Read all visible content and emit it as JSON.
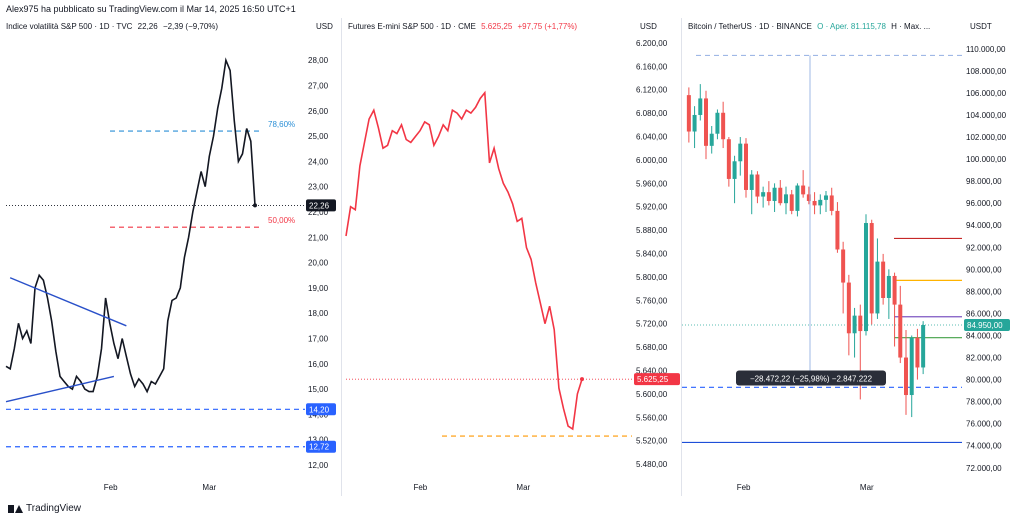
{
  "header": {
    "published": "Alex975 ha pubblicato su TradingView.com il Mar 14, 2025 16:50 UTC+1"
  },
  "footer": {
    "brand": "TradingView"
  },
  "panels": [
    {
      "title": "Indice volatilità S&P 500 · 1D · TVC",
      "last": "22,26",
      "change": "−2,39 (−9,70%)",
      "currency": "USD"
    },
    {
      "title": "Futures E-mini S&P 500 · 1D · CME",
      "last": "5.625,25",
      "change": "+97,75 (+1,77%)",
      "currency": "USD"
    },
    {
      "title": "Bitcoin / TetherUS · 1D · BINANCE",
      "last": "O · Aper. 81.115,78",
      "change": "H · Max. ...",
      "currency": "USDT"
    }
  ],
  "chart_data": [
    {
      "type": "line",
      "title": "Indice volatilità S&P 500 · 1D · TVC",
      "x_labels": [
        "Feb",
        "Mar"
      ],
      "y_ticks": [
        "28,00",
        "27,00",
        "26,00",
        "25,00",
        "24,00",
        "23,00",
        "22,00",
        "21,00",
        "20,00",
        "19,00",
        "18,00",
        "17,00",
        "16,00",
        "15,00",
        "14,00",
        "13,00",
        "12,00"
      ],
      "ylim": [
        11.8,
        28.8
      ],
      "values": [
        15.9,
        15.8,
        16.6,
        17.6,
        17.0,
        17.3,
        16.8,
        19.0,
        19.5,
        19.3,
        18.6,
        17.7,
        16.5,
        15.5,
        15.3,
        15.1,
        15.0,
        15.5,
        15.3,
        15.0,
        14.9,
        14.9,
        15.5,
        16.6,
        18.6,
        17.6,
        16.8,
        16.2,
        17.0,
        16.3,
        15.6,
        15.1,
        15.4,
        15.2,
        14.9,
        15.3,
        15.2,
        15.5,
        15.8,
        17.7,
        18.5,
        18.6,
        19.0,
        20.2,
        21.0,
        22.0,
        22.8,
        23.6,
        23.0,
        24.2,
        25.0,
        26.1,
        26.9,
        28.0,
        27.6,
        25.6,
        24.0,
        24.3,
        25.3,
        24.8,
        22.26
      ],
      "color": "#131722",
      "annotations": [
        {
          "label": "78,60%",
          "value": 25.2,
          "color": "#2b8fd6",
          "style": "dashed"
        },
        {
          "label": "50,00%",
          "value": 21.4,
          "color": "#f23645",
          "style": "dashed"
        },
        {
          "label": "",
          "value": 22.26,
          "color": "#131722",
          "style": "dotted"
        },
        {
          "label": "14,20",
          "value": 14.2,
          "color": "#2962ff",
          "style": "dashed"
        },
        {
          "label": "12,72",
          "value": 12.72,
          "color": "#2962ff",
          "style": "dashed"
        }
      ],
      "trendlines": [
        {
          "from": [
            1,
            19.4
          ],
          "to": [
            29,
            17.5
          ],
          "color": "#2950c9"
        },
        {
          "from": [
            0,
            14.5
          ],
          "to": [
            26,
            15.5
          ],
          "color": "#2950c9"
        }
      ],
      "last_label": "22,26",
      "last_color": "#131722"
    },
    {
      "type": "line",
      "title": "Futures E-mini S&P 500 · 1D · CME",
      "x_labels": [
        "Feb",
        "Mar"
      ],
      "y_ticks": [
        "6.200,00",
        "6.160,00",
        "6.120,00",
        "6.080,00",
        "6.040,00",
        "6.000,00",
        "5.960,00",
        "5.920,00",
        "5.880,00",
        "5.840,00",
        "5.800,00",
        "5.760,00",
        "5.720,00",
        "5.680,00",
        "5.640,00",
        "5.600,00",
        "5.560,00",
        "5.520,00",
        "5.480,00"
      ],
      "ylim": [
        5470,
        6205
      ],
      "values": [
        5870,
        5920,
        5915,
        5990,
        6030,
        6070,
        6085,
        6055,
        6020,
        6025,
        6050,
        6045,
        6060,
        6035,
        6030,
        6040,
        6050,
        6065,
        6060,
        6025,
        6040,
        6060,
        6050,
        6085,
        6080,
        6070,
        6085,
        6080,
        6090,
        6105,
        6115,
        5995,
        6020,
        5985,
        5960,
        5945,
        5925,
        5895,
        5900,
        5850,
        5830,
        5790,
        5755,
        5720,
        5750,
        5710,
        5610,
        5575,
        5545,
        5540,
        5600,
        5625.25
      ],
      "color": "#f23645",
      "annotations": [
        {
          "label": "",
          "value": 5528,
          "color": "#ff9800",
          "style": "dashed"
        },
        {
          "label": "",
          "value": 5625.25,
          "color": "#f23645",
          "style": "dotted"
        }
      ],
      "last_label": "5.625,25",
      "last_color": "#f23645"
    },
    {
      "type": "candlestick",
      "title": "Bitcoin / TetherUS · 1D · BINANCE",
      "x_labels": [
        "Feb",
        "Mar"
      ],
      "y_ticks": [
        "110.000,00",
        "108.000,00",
        "106.000,00",
        "104.000,00",
        "102.000,00",
        "100.000,00",
        "98.000,00",
        "96.000,00",
        "94.000,00",
        "92.000,00",
        "90.000,00",
        "88.000,00",
        "86.000,00",
        "84.000,00",
        "82.000,00",
        "80.000,00",
        "78.000,00",
        "76.000,00",
        "74.000,00",
        "72.000,00"
      ],
      "ylim": [
        71800,
        110800
      ],
      "ohlc": [
        [
          105800,
          106500,
          101500,
          102500
        ],
        [
          102500,
          104800,
          101000,
          104000
        ],
        [
          104000,
          106800,
          103500,
          105500
        ],
        [
          105500,
          106200,
          100000,
          101200
        ],
        [
          101200,
          103000,
          100500,
          102300
        ],
        [
          102300,
          104500,
          101800,
          104200
        ],
        [
          104200,
          105200,
          101000,
          101800
        ],
        [
          101800,
          102000,
          97500,
          98200
        ],
        [
          98200,
          100300,
          96000,
          99800
        ],
        [
          99800,
          102000,
          98500,
          101400
        ],
        [
          101400,
          101900,
          96500,
          97200
        ],
        [
          97200,
          99000,
          95000,
          98600
        ],
        [
          98600,
          98900,
          96000,
          96600
        ],
        [
          96600,
          97500,
          95600,
          97000
        ],
        [
          97000,
          98000,
          95800,
          96200
        ],
        [
          96200,
          97800,
          95200,
          97400
        ],
        [
          97400,
          98100,
          95800,
          96000
        ],
        [
          96000,
          97500,
          95000,
          96800
        ],
        [
          96800,
          97200,
          95000,
          95300
        ],
        [
          95300,
          97800,
          94800,
          97600
        ],
        [
          97600,
          99000,
          96500,
          96800
        ],
        [
          96800,
          97500,
          95900,
          96200
        ],
        [
          96200,
          97000,
          95000,
          95800
        ],
        [
          95800,
          96800,
          95000,
          96300
        ],
        [
          96300,
          97100,
          95200,
          96700
        ],
        [
          96700,
          97400,
          94900,
          95300
        ],
        [
          95300,
          96100,
          91500,
          91800
        ],
        [
          91800,
          92500,
          86000,
          88800
        ],
        [
          88800,
          89500,
          82200,
          84200
        ],
        [
          84200,
          86500,
          82000,
          85800
        ],
        [
          85800,
          86800,
          78200,
          84400
        ],
        [
          84400,
          95000,
          84000,
          94200
        ],
        [
          94200,
          94500,
          85000,
          86000
        ],
        [
          86000,
          92800,
          85500,
          90700
        ],
        [
          90700,
          91400,
          86800,
          87400
        ],
        [
          87400,
          90000,
          85500,
          89400
        ],
        [
          89400,
          89700,
          83000,
          86800
        ],
        [
          86800,
          88500,
          81500,
          82000
        ],
        [
          82000,
          84500,
          76800,
          78600
        ],
        [
          78600,
          84000,
          76600,
          83800
        ],
        [
          83800,
          84600,
          80000,
          81100
        ],
        [
          81100,
          85300,
          80500,
          84950
        ]
      ],
      "up_color": "#26a69a",
      "down_color": "#ef5350",
      "annotations": [
        {
          "label": "",
          "value": 109400,
          "color": "#9fb8e6",
          "style": "dashed"
        },
        {
          "label": "",
          "value": 92800,
          "color": "#c62828",
          "style": "solid"
        },
        {
          "label": "",
          "value": 89000,
          "color": "#ffb300",
          "style": "solid"
        },
        {
          "label": "",
          "value": 85700,
          "color": "#7e57c2",
          "style": "solid"
        },
        {
          "label": "",
          "value": 84950,
          "color": "#26a69a",
          "style": "dotted"
        },
        {
          "label": "",
          "value": 83800,
          "color": "#43a047",
          "style": "solid"
        },
        {
          "label": "",
          "value": 79300,
          "color": "#2962ff",
          "style": "dashed"
        },
        {
          "label": "",
          "value": 74300,
          "color": "#1e4fd8",
          "style": "solid"
        }
      ],
      "measure_label": "−28.472,22 (−25,98%) −2.847.222",
      "last_label": "84.950,00",
      "last_color": "#26a69a"
    }
  ]
}
